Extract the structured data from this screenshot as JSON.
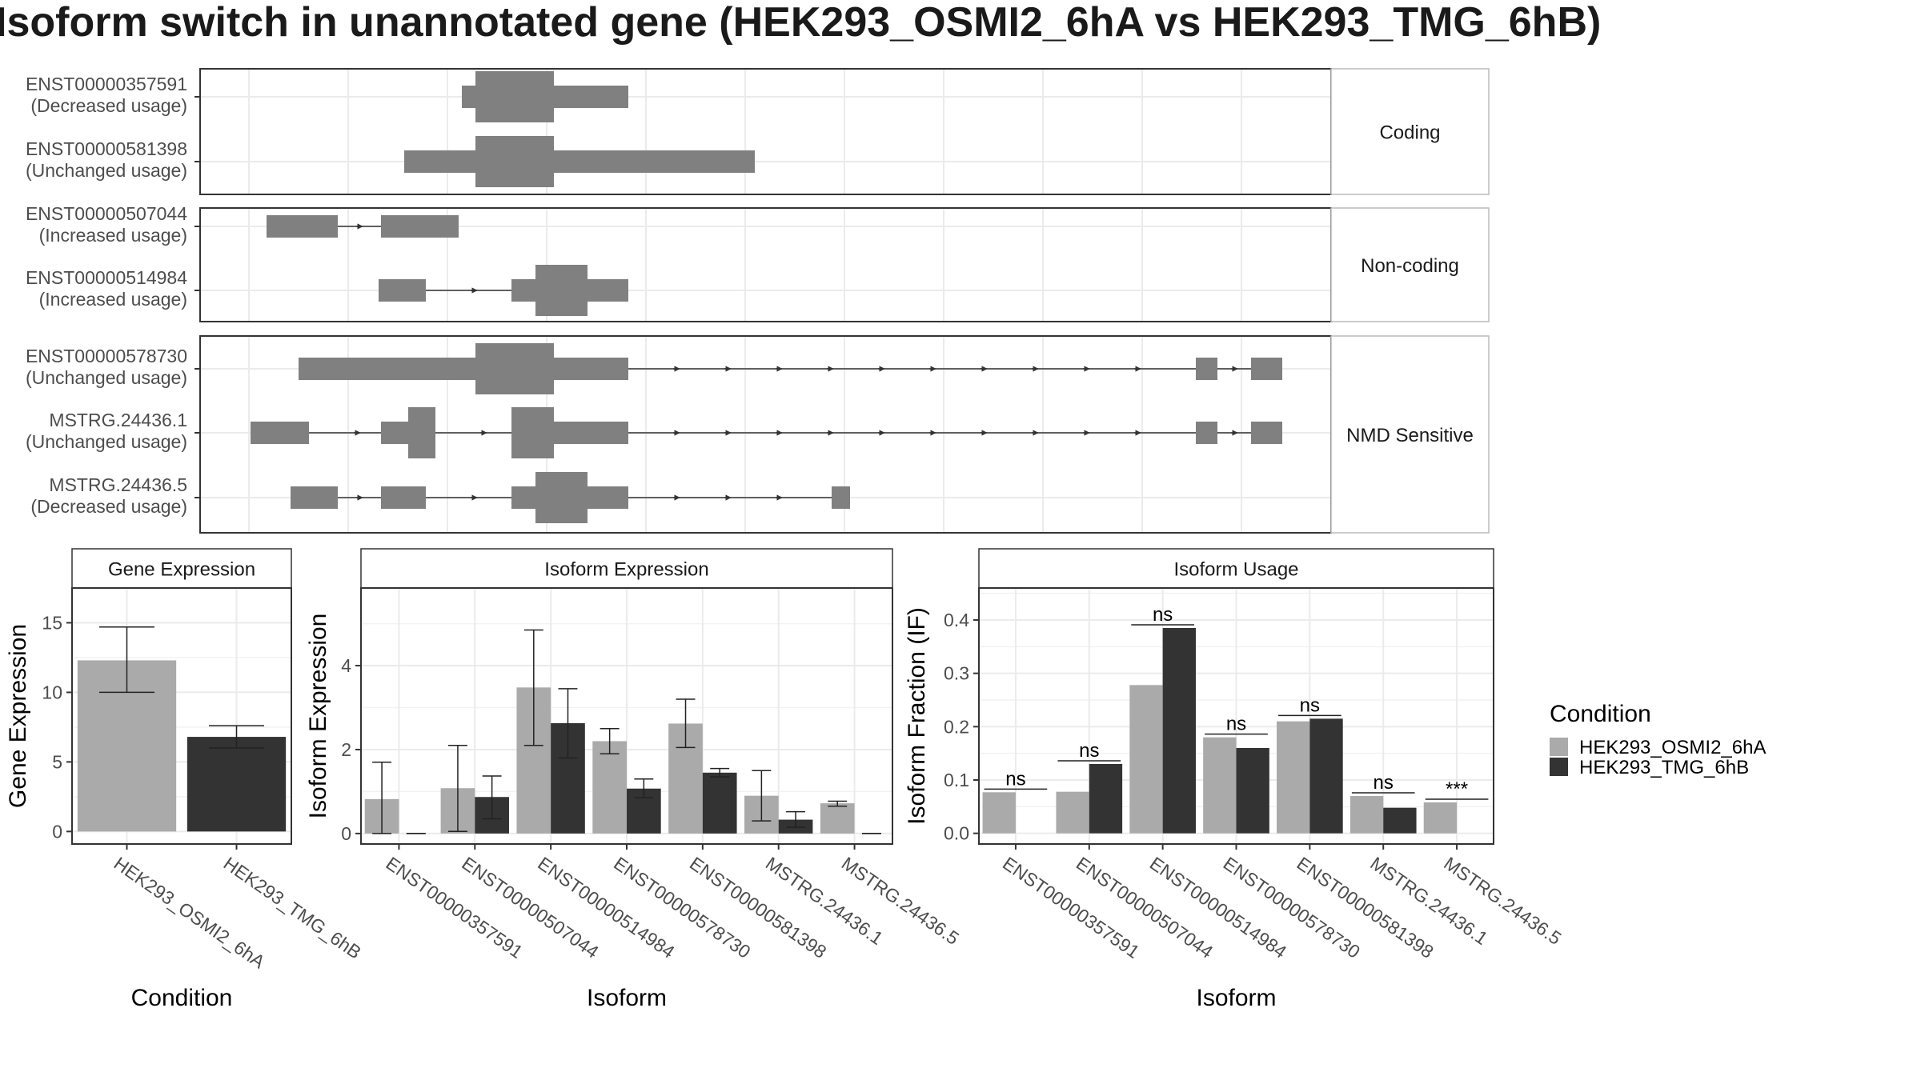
{
  "title": "Isoform switch in unannotated gene (HEK293_OSMI2_6hA vs HEK293_TMG_6hB)",
  "colors": {
    "cond1": "#aaaaaa",
    "cond2": "#333333",
    "feature": "#808080"
  },
  "structure": {
    "groups": [
      {
        "label": "Coding",
        "rows": [
          {
            "id": "ENST00000357591",
            "usage": "(Decreased usage)"
          },
          {
            "id": "ENST00000581398",
            "usage": "(Unchanged usage)"
          }
        ]
      },
      {
        "label": "Non-coding",
        "rows": [
          {
            "id": "ENST00000507044",
            "usage": "(Increased usage)"
          },
          {
            "id": "ENST00000514984",
            "usage": "(Increased usage)"
          }
        ]
      },
      {
        "label": "NMD Sensitive",
        "rows": [
          {
            "id": "ENST00000578730",
            "usage": "(Unchanged usage)"
          },
          {
            "id": "MSTRG.24436.1",
            "usage": "(Unchanged usage)"
          },
          {
            "id": "MSTRG.24436.5",
            "usage": "(Decreased usage)"
          }
        ]
      }
    ]
  },
  "chart_data": [
    {
      "type": "bar",
      "title": "Gene Expression",
      "xlabel": "Condition",
      "ylabel": "Gene Expression",
      "categories": [
        "HEK293_OSMI2_6hA",
        "HEK293_TMG_6hB"
      ],
      "values": [
        12.3,
        6.8
      ],
      "error_low": [
        10.0,
        6.0
      ],
      "error_high": [
        14.7,
        7.6
      ],
      "ylim": [
        -0.9,
        17.5
      ],
      "yticks": [
        0,
        5,
        10,
        15
      ]
    },
    {
      "type": "bar",
      "title": "Isoform Expression",
      "xlabel": "Isoform",
      "ylabel": "Isoform Expression",
      "categories": [
        "ENST00000357591",
        "ENST00000507044",
        "ENST00000514984",
        "ENST00000578730",
        "ENST00000581398",
        "MSTRG.24436.1",
        "MSTRG.24436.5"
      ],
      "series": [
        {
          "name": "HEK293_OSMI2_6hA",
          "values": [
            0.82,
            1.08,
            3.48,
            2.2,
            2.62,
            0.9,
            0.72
          ],
          "error_low": [
            0.0,
            0.05,
            2.1,
            1.9,
            2.05,
            0.3,
            0.65
          ],
          "error_high": [
            1.7,
            2.1,
            4.85,
            2.5,
            3.2,
            1.5,
            0.77
          ]
        },
        {
          "name": "HEK293_TMG_6hB",
          "values": [
            0.0,
            0.87,
            2.63,
            1.07,
            1.45,
            0.33,
            0.0
          ],
          "error_low": [
            0.0,
            0.35,
            1.8,
            0.85,
            1.35,
            0.15,
            0.0
          ],
          "error_high": [
            0.0,
            1.37,
            3.45,
            1.3,
            1.55,
            0.52,
            0.0
          ]
        }
      ],
      "ylim": [
        -0.25,
        5.85
      ],
      "yticks": [
        0,
        2,
        4
      ]
    },
    {
      "type": "bar",
      "title": "Isoform Usage",
      "xlabel": "Isoform",
      "ylabel": "Isoform Fraction (IF)",
      "categories": [
        "ENST00000357591",
        "ENST00000507044",
        "ENST00000514984",
        "ENST00000578730",
        "ENST00000581398",
        "MSTRG.24436.1",
        "MSTRG.24436.5"
      ],
      "series": [
        {
          "name": "HEK293_OSMI2_6hA",
          "values": [
            0.077,
            0.078,
            0.278,
            0.18,
            0.21,
            0.07,
            0.058
          ]
        },
        {
          "name": "HEK293_TMG_6hB",
          "values": [
            0.0,
            0.13,
            0.385,
            0.16,
            0.215,
            0.048,
            0.0
          ]
        }
      ],
      "significance": [
        "ns",
        "ns",
        "ns",
        "ns",
        "ns",
        "ns",
        "***"
      ],
      "ylim": [
        -0.02,
        0.46
      ],
      "yticks": [
        0.0,
        0.1,
        0.2,
        0.3,
        0.4
      ],
      "ytick_labels": [
        "0.0",
        "0.1",
        "0.2",
        "0.3",
        "0.4"
      ]
    }
  ],
  "legend": {
    "title": "Condition",
    "items": [
      "HEK293_OSMI2_6hA",
      "HEK293_TMG_6hB"
    ]
  }
}
